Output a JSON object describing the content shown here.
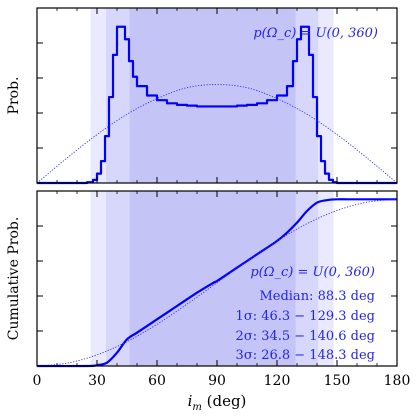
{
  "colors": {
    "curve": "#0000ff",
    "reference": "#2a2aff",
    "band_3sigma": "#e9e9ff",
    "band_2sigma": "#d7d7fc",
    "band_1sigma": "#c4c4f7",
    "text_blue": "#2525e8",
    "axis": "#000000"
  },
  "x_axis": {
    "label": "i_m (deg)",
    "label_main": "i",
    "label_sub": "m",
    "label_unit": " (deg)",
    "ticks": [
      "0",
      "30",
      "60",
      "90",
      "120",
      "150",
      "180"
    ],
    "range": [
      0,
      180
    ]
  },
  "chart_data": [
    {
      "type": "line",
      "ylabel": "Prob.",
      "yticks_labeled": false,
      "xlim": [
        0,
        180
      ],
      "ylim": [
        0,
        1.12
      ],
      "annotation": "p(Ω_c) = U(0, 360)",
      "bands": [
        {
          "name": "3σ",
          "range": [
            26.8,
            148.3
          ]
        },
        {
          "name": "2σ",
          "range": [
            34.5,
            140.6
          ]
        },
        {
          "name": "1σ",
          "range": [
            46.3,
            129.3
          ]
        }
      ],
      "series": [
        {
          "style": "step",
          "x": [
            0,
            20,
            25,
            28,
            30,
            32,
            34,
            36,
            38,
            40,
            42,
            44,
            46,
            48,
            50,
            55,
            60,
            65,
            70,
            75,
            80,
            85,
            90,
            95,
            100,
            105,
            110,
            115,
            120,
            125,
            128,
            130,
            132,
            134,
            136,
            138,
            140,
            142,
            144,
            146,
            148,
            150,
            152,
            155,
            160,
            180
          ],
          "y": [
            0,
            0,
            0.005,
            0.02,
            0.06,
            0.14,
            0.3,
            0.55,
            0.82,
            1.0,
            1.0,
            0.92,
            0.78,
            0.68,
            0.62,
            0.56,
            0.53,
            0.51,
            0.5,
            0.495,
            0.49,
            0.49,
            0.49,
            0.49,
            0.495,
            0.5,
            0.51,
            0.53,
            0.56,
            0.62,
            0.78,
            0.92,
            1.0,
            1.0,
            0.82,
            0.55,
            0.3,
            0.14,
            0.06,
            0.02,
            0.005,
            0.0,
            0.0,
            0.0,
            0.0,
            0.0
          ]
        },
        {
          "style": "dotted",
          "x": [
            0,
            15,
            30,
            45,
            60,
            75,
            90,
            105,
            120,
            135,
            150,
            165,
            180
          ],
          "y": [
            0,
            0.16,
            0.31,
            0.44,
            0.54,
            0.61,
            0.63,
            0.61,
            0.54,
            0.44,
            0.31,
            0.16,
            0
          ]
        }
      ]
    },
    {
      "type": "line",
      "ylabel": "Cumulative Prob.",
      "yticks_labeled": false,
      "xlim": [
        0,
        180
      ],
      "ylim": [
        0,
        1.05
      ],
      "annotations": [
        "p(Ω_c) = U(0, 360)",
        "Median: 88.3 deg",
        "1σ: 46.3 − 129.3 deg",
        "2σ: 34.5 − 140.6 deg",
        "3σ: 26.8 − 148.3 deg"
      ],
      "bands": [
        {
          "name": "3σ",
          "range": [
            26.8,
            148.3
          ]
        },
        {
          "name": "2σ",
          "range": [
            34.5,
            140.6
          ]
        },
        {
          "name": "1σ",
          "range": [
            46.3,
            129.3
          ]
        }
      ],
      "series": [
        {
          "style": "solid",
          "x": [
            0,
            25,
            30,
            35,
            40,
            45,
            50,
            60,
            70,
            80,
            88.3,
            90,
            100,
            110,
            120,
            125,
            130,
            135,
            140,
            145,
            150,
            160,
            180
          ],
          "y": [
            0,
            0.0,
            0.005,
            0.02,
            0.08,
            0.16,
            0.2,
            0.28,
            0.36,
            0.44,
            0.5,
            0.51,
            0.59,
            0.67,
            0.75,
            0.8,
            0.86,
            0.93,
            0.98,
            0.995,
            1.0,
            1.0,
            1.0
          ]
        },
        {
          "style": "dotted",
          "x": [
            0,
            15,
            30,
            45,
            60,
            75,
            90,
            105,
            120,
            135,
            150,
            165,
            180
          ],
          "y": [
            0,
            0.017,
            0.067,
            0.146,
            0.25,
            0.371,
            0.5,
            0.629,
            0.75,
            0.854,
            0.933,
            0.983,
            1.0
          ]
        }
      ]
    }
  ]
}
